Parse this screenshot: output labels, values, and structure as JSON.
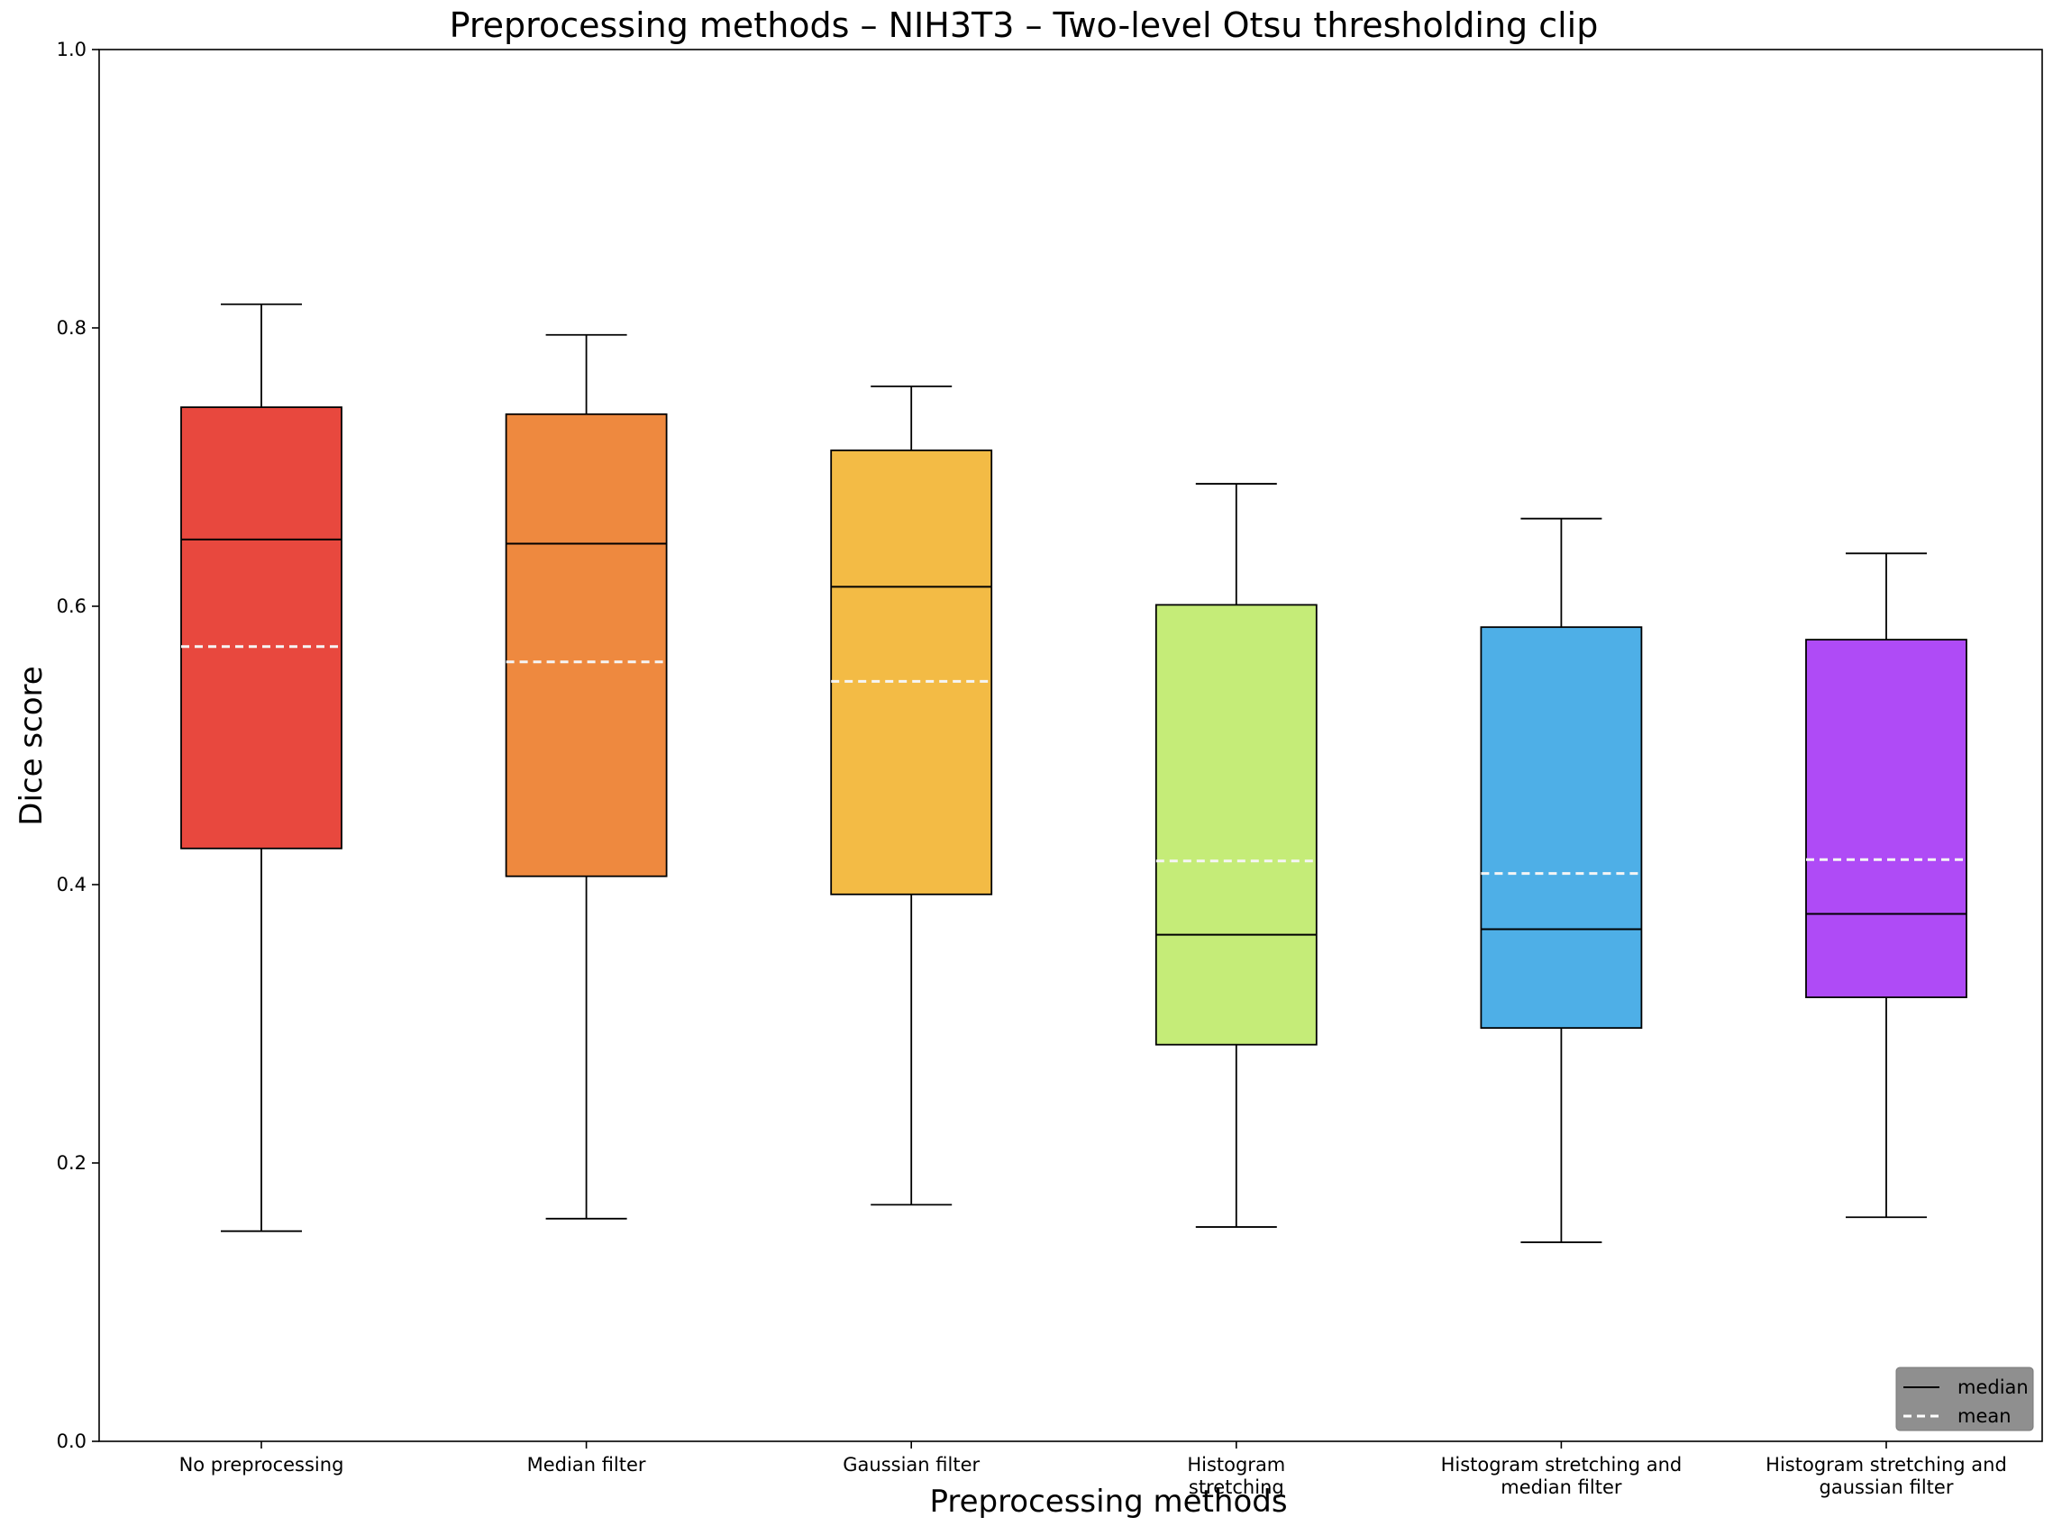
{
  "chart_data": {
    "type": "box",
    "title": "Preprocessing methods – NIH3T3 – Two-level Otsu thresholding clip",
    "xlabel": "Preprocessing methods",
    "ylabel": "Dice score",
    "ylim": [
      0.0,
      1.0
    ],
    "yticks": [
      "0.0",
      "0.2",
      "0.4",
      "0.6",
      "0.8",
      "1.0"
    ],
    "grid": false,
    "legend_position": "bottom-right",
    "legend": [
      {
        "label": "median",
        "style": "solid",
        "color": "#000000"
      },
      {
        "label": "mean",
        "style": "dashed",
        "color": "#ffffff"
      }
    ],
    "categories": [
      [
        "No preprocessing"
      ],
      [
        "Median filter"
      ],
      [
        "Gaussian filter"
      ],
      [
        "Histogram",
        "stretching"
      ],
      [
        "Histogram stretching and",
        "median filter"
      ],
      [
        "Histogram stretching and",
        "gaussian filter"
      ]
    ],
    "colors": [
      "#e8483e",
      "#ee893f",
      "#f3bb45",
      "#c5ec78",
      "#4eafe7",
      "#af4bf6"
    ],
    "boxes": [
      {
        "whisker_low": 0.151,
        "q1": 0.426,
        "median": 0.648,
        "q3": 0.743,
        "whisker_high": 0.817,
        "mean": 0.571
      },
      {
        "whisker_low": 0.16,
        "q1": 0.406,
        "median": 0.645,
        "q3": 0.738,
        "whisker_high": 0.795,
        "mean": 0.56
      },
      {
        "whisker_low": 0.17,
        "q1": 0.393,
        "median": 0.614,
        "q3": 0.712,
        "whisker_high": 0.758,
        "mean": 0.546
      },
      {
        "whisker_low": 0.154,
        "q1": 0.285,
        "median": 0.364,
        "q3": 0.601,
        "whisker_high": 0.688,
        "mean": 0.417
      },
      {
        "whisker_low": 0.143,
        "q1": 0.297,
        "median": 0.368,
        "q3": 0.585,
        "whisker_high": 0.663,
        "mean": 0.408
      },
      {
        "whisker_low": 0.161,
        "q1": 0.319,
        "median": 0.379,
        "q3": 0.576,
        "whisker_high": 0.638,
        "mean": 0.418
      }
    ]
  }
}
